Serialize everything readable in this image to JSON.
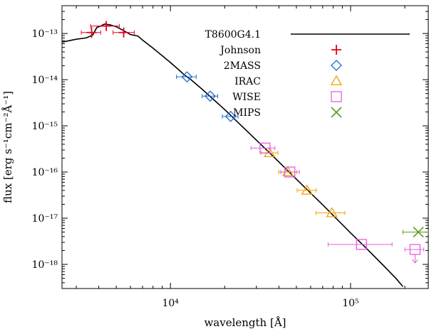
{
  "chart_data": {
    "type": "scatter",
    "xlabel": "wavelength [Å]",
    "ylabel": "flux [erg s⁻¹cm⁻²Å⁻¹]",
    "xscale": "log",
    "yscale": "log",
    "xlim": [
      2500,
      270000
    ],
    "ylim": [
      3e-19,
      4e-13
    ],
    "xticks": [
      {
        "value": 10000,
        "label": "10⁴"
      },
      {
        "value": 100000,
        "label": "10⁵"
      }
    ],
    "yticks": [
      {
        "value": 1e-13,
        "label": "10⁻¹³"
      },
      {
        "value": 1e-14,
        "label": "10⁻¹⁴"
      },
      {
        "value": 1e-15,
        "label": "10⁻¹⁵"
      },
      {
        "value": 1e-16,
        "label": "10⁻¹⁶"
      },
      {
        "value": 1e-17,
        "label": "10⁻¹⁷"
      },
      {
        "value": 1e-18,
        "label": "10⁻¹⁸"
      }
    ],
    "legend_position": "top-right",
    "model": {
      "name": "T8600G4.1",
      "color": "#000000",
      "points": [
        [
          2500,
          6.5e-14
        ],
        [
          3000,
          7.5e-14
        ],
        [
          3400,
          8e-14
        ],
        [
          3700,
          9.2e-14
        ],
        [
          3900,
          1.35e-13
        ],
        [
          4100,
          1.45e-13
        ],
        [
          4300,
          1.6e-13
        ],
        [
          4600,
          1.55e-13
        ],
        [
          5000,
          1.4e-13
        ],
        [
          5500,
          1.15e-13
        ],
        [
          6000,
          9.5e-14
        ],
        [
          6600,
          8.8e-14
        ],
        [
          7000,
          7.2e-14
        ],
        [
          8000,
          4.8e-14
        ],
        [
          9000,
          3.3e-14
        ],
        [
          10000,
          2.35e-14
        ],
        [
          11000,
          1.7e-14
        ],
        [
          12000,
          1.25e-14
        ],
        [
          13000,
          1e-14
        ],
        [
          15000,
          6.2e-15
        ],
        [
          17000,
          4e-15
        ],
        [
          20000,
          2.25e-15
        ],
        [
          25000,
          9.7e-16
        ],
        [
          30000,
          4.9e-16
        ],
        [
          35000,
          2.75e-16
        ],
        [
          40000,
          1.65e-16
        ],
        [
          45000,
          1.05e-16
        ],
        [
          50000,
          7e-17
        ],
        [
          60000,
          3.5e-17
        ],
        [
          70000,
          1.95e-17
        ],
        [
          80000,
          1.15e-17
        ],
        [
          100000,
          4.8e-18
        ],
        [
          120000,
          2.4e-18
        ],
        [
          150000,
          1e-18
        ],
        [
          180000,
          4.8e-19
        ],
        [
          195000,
          3.3e-19
        ]
      ]
    },
    "series": [
      {
        "name": "Johnson",
        "marker": "plus",
        "color": "#e8001c",
        "points": [
          {
            "x": 3650,
            "y": 1.05e-13,
            "xerr": [
              3200,
              4100
            ],
            "yerr": [
              8e-14,
              1.4e-13
            ]
          },
          {
            "x": 4400,
            "y": 1.45e-13,
            "xerr": [
              3600,
              5200
            ],
            "yerr": [
              1.2e-13,
              1.8e-13
            ]
          },
          {
            "x": 5500,
            "y": 1.05e-13,
            "xerr": [
              4800,
              6300
            ],
            "yerr": [
              9e-14,
              1.2e-13
            ]
          }
        ]
      },
      {
        "name": "2MASS",
        "marker": "diamond",
        "color": "#1a6fd6",
        "points": [
          {
            "x": 12350,
            "y": 1.15e-14,
            "xerr": [
              10800,
              13900
            ]
          },
          {
            "x": 16620,
            "y": 4.4e-15,
            "xerr": [
              15000,
              18300
            ]
          },
          {
            "x": 21590,
            "y": 1.6e-15,
            "xerr": [
              19400,
              23700
            ]
          }
        ]
      },
      {
        "name": "IRAC",
        "marker": "triangle",
        "color": "#f0a000",
        "points": [
          {
            "x": 35500,
            "y": 2.6e-16,
            "xerr": [
              31800,
              39500
            ]
          },
          {
            "x": 44900,
            "y": 1e-16,
            "xerr": [
              39900,
              50200
            ]
          },
          {
            "x": 57300,
            "y": 4e-17,
            "xerr": [
              50500,
              64500
            ]
          },
          {
            "x": 78700,
            "y": 1.3e-17,
            "xerr": [
              64200,
              93000
            ]
          }
        ]
      },
      {
        "name": "WISE",
        "marker": "square",
        "color": "#e85ce0",
        "points": [
          {
            "x": 33500,
            "y": 3.3e-16,
            "xerr": [
              28000,
              38000
            ]
          },
          {
            "x": 46000,
            "y": 1e-16,
            "xerr": [
              41000,
              52000
            ]
          },
          {
            "x": 115000,
            "y": 2.7e-18,
            "xerr": [
              75000,
              170000
            ]
          },
          {
            "x": 228000,
            "y": 2.1e-18,
            "xerr": [
              200000,
              255000
            ],
            "upper_limit": true
          }
        ]
      },
      {
        "name": "MIPS",
        "marker": "cross",
        "color": "#5c9a1e",
        "points": [
          {
            "x": 238000,
            "y": 5e-18,
            "xerr": [
              195000,
              270000
            ]
          }
        ]
      }
    ]
  }
}
